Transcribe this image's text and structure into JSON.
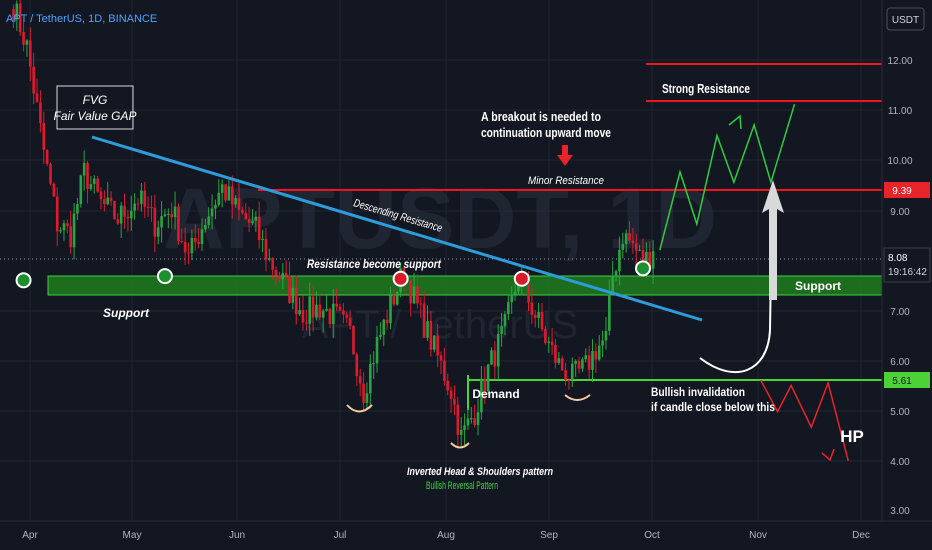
{
  "header": {
    "symbol_label": "APT / TetherUS, 1D, BINANCE",
    "currency_button": "USDT"
  },
  "watermark": {
    "ticker": "APTUSDT, 1D",
    "name": "APT / TetherUS"
  },
  "price_axis": {
    "ticks": [
      "12.00",
      "11.00",
      "10.00",
      "9.00",
      "8.00",
      "7.00",
      "6.00",
      "5.00",
      "4.00",
      "3.00"
    ],
    "current_price": "8.08",
    "countdown": "19:16:42",
    "resistance_badge": "9.39",
    "invalidation_badge": "5.61"
  },
  "time_axis": {
    "ticks": [
      "Apr",
      "May",
      "Jun",
      "Jul",
      "Aug",
      "Sep",
      "Oct",
      "Nov",
      "Dec"
    ]
  },
  "annotations": {
    "fvg_line1": "FVG",
    "fvg_line2": "Fair Value GAP",
    "breakout_line1": "A breakout is needed to",
    "breakout_line2": "continuation upward move",
    "minor_resistance": "Minor Resistance",
    "strong_resistance": "Strong Resistance",
    "descending_resistance": "Descending Resistance",
    "resistance_become_support": "Resistance become support",
    "support_left": "Support",
    "support_right": "Support",
    "demand": "Demand",
    "invalidation_line1": "Bullish invalidation",
    "invalidation_line2": "if candle close below this",
    "hp": "HP",
    "ihs_line1": "Inverted Head & Shoulders pattern",
    "ihs_line2": "Bullish Reversal Pattern"
  },
  "colors": {
    "background": "#131722",
    "bull": "#26a641",
    "bear": "#e0192f",
    "trendline": "#2d9cdb",
    "support_zone": "#1f7a1f",
    "resistance_line": "#f0141e",
    "demand_line": "#4cd137",
    "projection_up": "#2ecc40",
    "projection_down": "#e8232a"
  },
  "chart_data": {
    "type": "candlestick",
    "timeframe": "1D",
    "y_range": [
      2.9,
      12.9
    ],
    "x_range": [
      "2023-03-28",
      "2023-12-15"
    ],
    "levels": {
      "support_zone": [
        7.33,
        7.72
      ],
      "minor_resistance": 9.39,
      "strong_resistance_low": 11.15,
      "strong_resistance_high": 11.93,
      "demand": 5.61,
      "current_price": 8.08
    },
    "descending_trendline": [
      {
        "date": "2023-04-20",
        "price": 10.45
      },
      {
        "date": "2023-10-20",
        "price": 6.8
      }
    ],
    "ohlc_path": [
      {
        "date": "2023-04-01",
        "price": 12.8
      },
      {
        "date": "2023-04-05",
        "price": 12.0
      },
      {
        "date": "2023-04-10",
        "price": 10.0
      },
      {
        "date": "2023-04-14",
        "price": 8.6
      },
      {
        "date": "2023-04-18",
        "price": 8.4
      },
      {
        "date": "2023-04-22",
        "price": 9.6
      },
      {
        "date": "2023-04-27",
        "price": 9.0
      },
      {
        "date": "2023-05-02",
        "price": 8.7
      },
      {
        "date": "2023-05-08",
        "price": 9.1
      },
      {
        "date": "2023-05-13",
        "price": 8.6
      },
      {
        "date": "2023-05-18",
        "price": 8.9
      },
      {
        "date": "2023-05-23",
        "price": 7.95
      },
      {
        "date": "2023-05-28",
        "price": 8.7
      },
      {
        "date": "2023-06-02",
        "price": 9.3
      },
      {
        "date": "2023-06-07",
        "price": 8.8
      },
      {
        "date": "2023-06-12",
        "price": 8.5
      },
      {
        "date": "2023-06-16",
        "price": 7.9
      },
      {
        "date": "2023-06-21",
        "price": 7.4
      },
      {
        "date": "2023-06-26",
        "price": 6.9
      },
      {
        "date": "2023-07-01",
        "price": 7.0
      },
      {
        "date": "2023-07-06",
        "price": 6.8
      },
      {
        "date": "2023-07-10",
        "price": 6.5
      },
      {
        "date": "2023-07-14",
        "price": 5.4
      },
      {
        "date": "2023-07-18",
        "price": 6.3
      },
      {
        "date": "2023-07-23",
        "price": 7.2
      },
      {
        "date": "2023-07-26",
        "price": 7.7
      },
      {
        "date": "2023-07-30",
        "price": 7.0
      },
      {
        "date": "2023-08-04",
        "price": 6.2
      },
      {
        "date": "2023-08-09",
        "price": 5.4
      },
      {
        "date": "2023-08-12",
        "price": 4.5
      },
      {
        "date": "2023-08-16",
        "price": 5.0
      },
      {
        "date": "2023-08-20",
        "price": 5.8
      },
      {
        "date": "2023-08-25",
        "price": 6.6
      },
      {
        "date": "2023-08-29",
        "price": 7.6
      },
      {
        "date": "2023-09-02",
        "price": 7.0
      },
      {
        "date": "2023-09-06",
        "price": 6.4
      },
      {
        "date": "2023-09-10",
        "price": 5.9
      },
      {
        "date": "2023-09-14",
        "price": 5.65
      },
      {
        "date": "2023-09-18",
        "price": 5.85
      },
      {
        "date": "2023-09-21",
        "price": 6.2
      },
      {
        "date": "2023-09-24",
        "price": 6.4
      },
      {
        "date": "2023-09-26",
        "price": 7.6
      },
      {
        "date": "2023-09-29",
        "price": 8.4
      },
      {
        "date": "2023-10-02",
        "price": 8.2
      },
      {
        "date": "2023-10-05",
        "price": 7.85
      },
      {
        "date": "2023-10-08",
        "price": 8.08
      }
    ],
    "markers": [
      {
        "type": "support_touch",
        "date": "2023-04-04",
        "price": 7.52
      },
      {
        "type": "support_touch",
        "date": "2023-05-16",
        "price": 7.6
      },
      {
        "type": "resistance_touch",
        "date": "2023-07-25",
        "price": 7.55
      },
      {
        "type": "resistance_touch",
        "date": "2023-08-30",
        "price": 7.55
      },
      {
        "type": "support_touch",
        "date": "2023-10-05",
        "price": 7.75
      }
    ],
    "projection_up": [
      {
        "date": "2023-10-10",
        "price": 8.1
      },
      {
        "date": "2023-10-16",
        "price": 9.6
      },
      {
        "date": "2023-10-21",
        "price": 8.6
      },
      {
        "date": "2023-10-27",
        "price": 10.3
      },
      {
        "date": "2023-11-01",
        "price": 9.4
      },
      {
        "date": "2023-11-07",
        "price": 10.5
      },
      {
        "date": "2023-11-12",
        "price": 9.4
      },
      {
        "date": "2023-11-19",
        "price": 10.9
      }
    ],
    "projection_down": [
      {
        "date": "2023-11-09",
        "price": 5.6
      },
      {
        "date": "2023-11-14",
        "price": 5.0
      },
      {
        "date": "2023-11-18",
        "price": 5.5
      },
      {
        "date": "2023-11-24",
        "price": 4.7
      },
      {
        "date": "2023-11-29",
        "price": 5.55
      },
      {
        "date": "2023-12-05",
        "price": 4.05
      }
    ]
  }
}
